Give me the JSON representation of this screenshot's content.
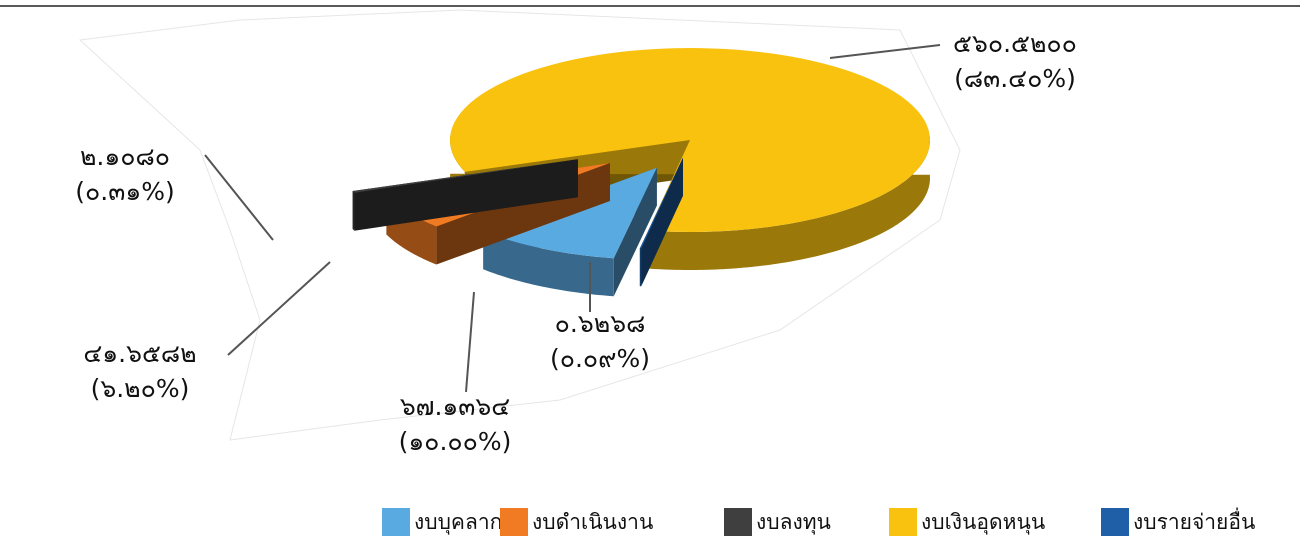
{
  "chart_data": {
    "type": "pie3d",
    "categories": [
      "งบบุคลากร",
      "งบดำเนินงาน",
      "งบลงทุน",
      "งบเงินอุดหนุน",
      "งบรายจ่ายอื่น"
    ],
    "values": [
      67.1364,
      41.6582,
      2.108,
      560.52,
      0.6268
    ],
    "value_labels": [
      "๖๗.๑๓๖๔",
      "๔๑.๖๕๘๒",
      "๒.๑๐๘๐",
      "๕๖๐.๕๒๐๐",
      "๐.๖๒๖๘"
    ],
    "percents": [
      10.0,
      6.2,
      0.31,
      83.4,
      0.09
    ],
    "percent_labels": [
      "(๑๐.๐๐%)",
      "(๖.๒๐%)",
      "(๐.๓๑%)",
      "(๘๓.๔๐%)",
      "(๐.๐๙%)"
    ],
    "colors": [
      "#5aaae2",
      "#f07b22",
      "#3f3f3f",
      "#f9c20e",
      "#1f5fa8"
    ],
    "legend": "bottom"
  }
}
